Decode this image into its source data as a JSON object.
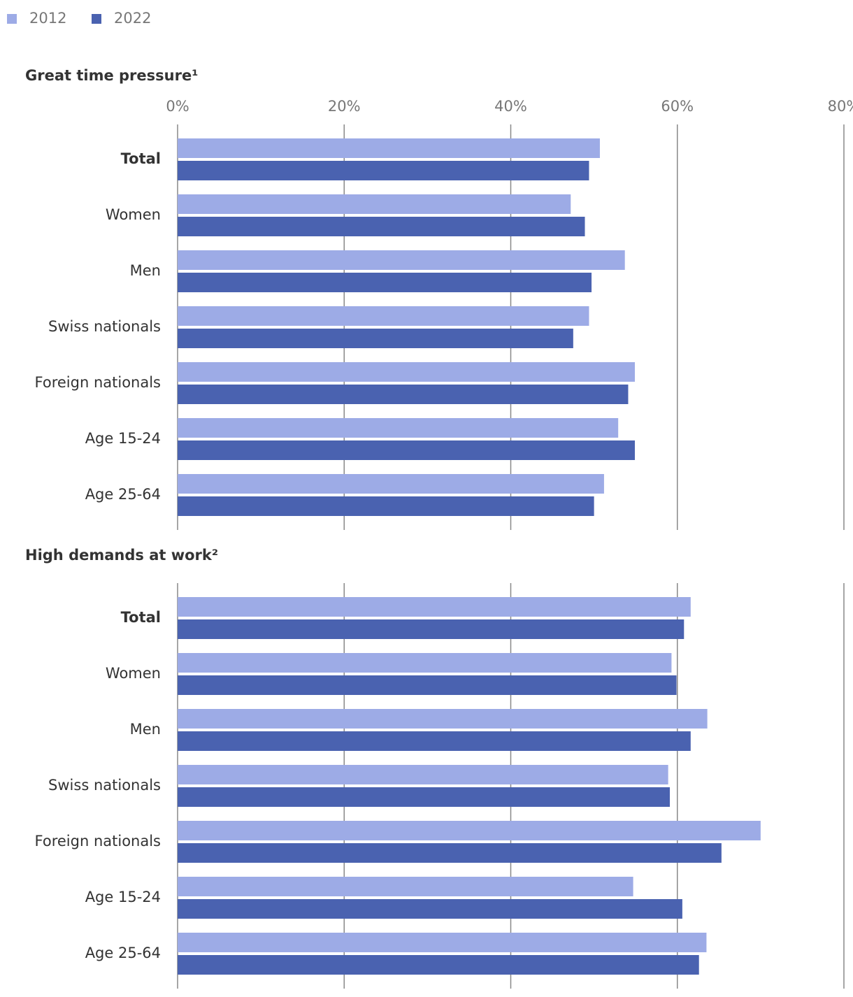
{
  "chart_data": [
    {
      "type": "bar",
      "orientation": "horizontal",
      "title": "Great time pressure¹",
      "categories": [
        "Total",
        "Women",
        "Men",
        "Swiss nationals",
        "Foreign nationals",
        "Age 15-24",
        "Age 25-64"
      ],
      "series": [
        {
          "name": "2012",
          "color": "#9dabe6",
          "values": [
            50.7,
            47.2,
            53.7,
            49.4,
            54.9,
            52.9,
            51.2
          ]
        },
        {
          "name": "2022",
          "color": "#4a62b0",
          "values": [
            49.4,
            48.9,
            49.7,
            47.5,
            54.1,
            54.9,
            50.0
          ]
        }
      ],
      "xlim": [
        0,
        80
      ],
      "xticks": [
        {
          "value": 0,
          "label": "0%"
        },
        {
          "value": 20,
          "label": "20%"
        },
        {
          "value": 40,
          "label": "40%"
        },
        {
          "value": 60,
          "label": "60%"
        },
        {
          "value": 80,
          "label": "80%"
        }
      ],
      "grid": true,
      "legend": "top-left"
    },
    {
      "type": "bar",
      "orientation": "horizontal",
      "title": "High demands at work²",
      "categories": [
        "Total",
        "Women",
        "Men",
        "Swiss nationals",
        "Foreign nationals",
        "Age 15-24",
        "Age 25-64"
      ],
      "series": [
        {
          "name": "2012",
          "color": "#9dabe6",
          "values": [
            61.6,
            59.3,
            63.6,
            58.9,
            70.0,
            54.7,
            63.5
          ]
        },
        {
          "name": "2022",
          "color": "#4a62b0",
          "values": [
            60.8,
            59.9,
            61.6,
            59.1,
            65.3,
            60.6,
            62.6
          ]
        }
      ],
      "xlim": [
        0,
        80
      ],
      "xticks": [
        0,
        20,
        40,
        60,
        80
      ],
      "grid": true
    }
  ]
}
